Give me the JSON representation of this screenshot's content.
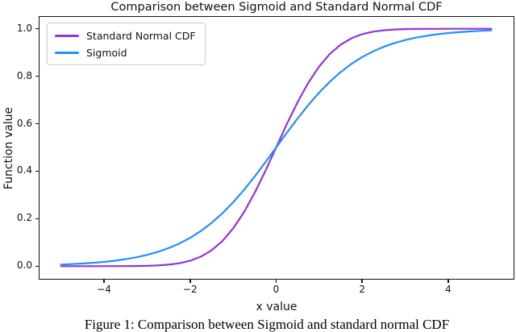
{
  "figure": {
    "caption": "Figure 1: Comparison between Sigmoid and standard normal CDF"
  },
  "chart_data": {
    "type": "line",
    "title": "Comparison between Sigmoid and Standard Normal CDF",
    "xlabel": "x value",
    "ylabel": "Function value",
    "xlim": [
      -5.5,
      5.5
    ],
    "ylim": [
      -0.05,
      1.05
    ],
    "grid": false,
    "legend_position": "upper left",
    "axis_color": "#111111",
    "x_ticks": {
      "values": [
        -4,
        -2,
        0,
        2,
        4
      ],
      "labels": [
        "−4",
        "−2",
        "0",
        "2",
        "4"
      ]
    },
    "y_ticks": {
      "values": [
        0.0,
        0.2,
        0.4,
        0.6,
        0.8,
        1.0
      ],
      "labels": [
        "0.0",
        "0.2",
        "0.4",
        "0.6",
        "0.8",
        "1.0"
      ]
    },
    "x": [
      -5,
      -4.75,
      -4.5,
      -4.25,
      -4,
      -3.75,
      -3.5,
      -3.25,
      -3,
      -2.75,
      -2.5,
      -2.25,
      -2,
      -1.75,
      -1.5,
      -1.25,
      -1,
      -0.75,
      -0.5,
      -0.25,
      0,
      0.25,
      0.5,
      0.75,
      1,
      1.25,
      1.5,
      1.75,
      2,
      2.25,
      2.5,
      2.75,
      3,
      3.25,
      3.5,
      3.75,
      4,
      4.25,
      4.5,
      4.75,
      5
    ],
    "series": [
      {
        "name": "Standard Normal CDF",
        "color": "#9632d8",
        "values": [
          3e-07,
          1e-06,
          3.4e-06,
          1.07e-05,
          3.17e-05,
          8.84e-05,
          0.000233,
          0.000577,
          0.00135,
          0.00298,
          0.00621,
          0.01222,
          0.02275,
          0.04006,
          0.06681,
          0.10565,
          0.15866,
          0.22663,
          0.30854,
          0.40129,
          0.5,
          0.59871,
          0.69146,
          0.77337,
          0.84134,
          0.89435,
          0.93319,
          0.95994,
          0.97725,
          0.98778,
          0.99379,
          0.99702,
          0.99865,
          0.99942,
          0.99977,
          0.99991,
          0.99997,
          0.99999,
          0.999997,
          0.999999,
          1.0
        ]
      },
      {
        "name": "Sigmoid",
        "color": "#1e90ff",
        "values": [
          0.00669,
          0.0086,
          0.01099,
          0.01406,
          0.01799,
          0.02297,
          0.02931,
          0.03733,
          0.04743,
          0.06003,
          0.07586,
          0.09535,
          0.1192,
          0.14805,
          0.18243,
          0.2227,
          0.26894,
          0.32082,
          0.37754,
          0.43782,
          0.5,
          0.56218,
          0.62246,
          0.67918,
          0.73106,
          0.7773,
          0.81757,
          0.85195,
          0.8808,
          0.90465,
          0.92414,
          0.93992,
          0.95257,
          0.96267,
          0.97069,
          0.97703,
          0.98201,
          0.98594,
          0.98901,
          0.9914,
          0.99331
        ]
      }
    ]
  }
}
